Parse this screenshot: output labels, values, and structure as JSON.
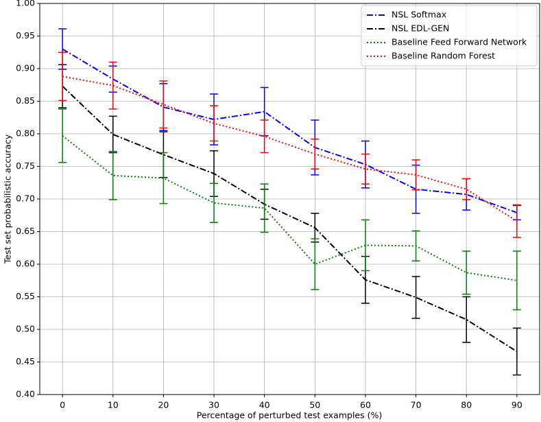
{
  "chart_data": {
    "type": "line",
    "xlabel": "Percentage of perturbed test examples (%)",
    "ylabel": "Test set probabilistic accuracy",
    "x": [
      0,
      10,
      20,
      30,
      40,
      50,
      60,
      70,
      80,
      90
    ],
    "xlim": [
      -4.5,
      94.5
    ],
    "xticks": [
      0,
      10,
      20,
      30,
      40,
      50,
      60,
      70,
      80,
      90
    ],
    "ylim": [
      0.4,
      1.0
    ],
    "yticks": [
      {
        "value": 0.4,
        "label": "0.40"
      },
      0.45,
      {
        "value": 0.5,
        "label": "0.50"
      },
      0.55,
      {
        "value": 0.6,
        "label": "0.60"
      },
      0.65,
      {
        "value": 0.7,
        "label": "0.70"
      },
      0.75,
      {
        "value": 0.8,
        "label": "0.80"
      },
      0.85,
      {
        "value": 0.9,
        "label": "0.90"
      },
      0.95,
      {
        "value": 1.0,
        "label": "1.00"
      }
    ],
    "grid": true,
    "legend": "upper right",
    "series": [
      {
        "name": "NSL Softmax",
        "color": "#0000ff",
        "linestyle": "dashdot",
        "values": [
          0.93,
          0.884,
          0.841,
          0.822,
          0.834,
          0.779,
          0.753,
          0.715,
          0.707,
          0.679
        ],
        "errors": [
          0.031,
          0.02,
          0.036,
          0.039,
          0.037,
          0.042,
          0.036,
          0.037,
          0.024,
          0.011
        ]
      },
      {
        "name": "NSL EDL-GEN",
        "color": "#000000",
        "linestyle": "dashdot",
        "values": [
          0.873,
          0.799,
          0.768,
          0.739,
          0.692,
          0.656,
          0.576,
          0.549,
          0.515,
          0.466
        ],
        "errors": [
          0.033,
          0.028,
          0.035,
          0.035,
          0.023,
          0.022,
          0.036,
          0.032,
          0.035,
          0.036
        ]
      },
      {
        "name": "Baseline Feed Forward Network",
        "color": "#008000",
        "linestyle": "dotted",
        "values": [
          0.797,
          0.736,
          0.732,
          0.694,
          0.686,
          0.6,
          0.629,
          0.628,
          0.587,
          0.575
        ],
        "errors": [
          0.041,
          0.037,
          0.039,
          0.03,
          0.037,
          0.039,
          0.039,
          0.023,
          0.033,
          0.045
        ]
      },
      {
        "name": "Baseline Random Forest",
        "color": "#ff0000",
        "linestyle": "dotted",
        "values": [
          0.888,
          0.874,
          0.845,
          0.816,
          0.796,
          0.769,
          0.746,
          0.737,
          0.715,
          0.666
        ],
        "errors": [
          0.037,
          0.036,
          0.036,
          0.027,
          0.025,
          0.023,
          0.023,
          0.023,
          0.016,
          0.025
        ]
      }
    ]
  }
}
